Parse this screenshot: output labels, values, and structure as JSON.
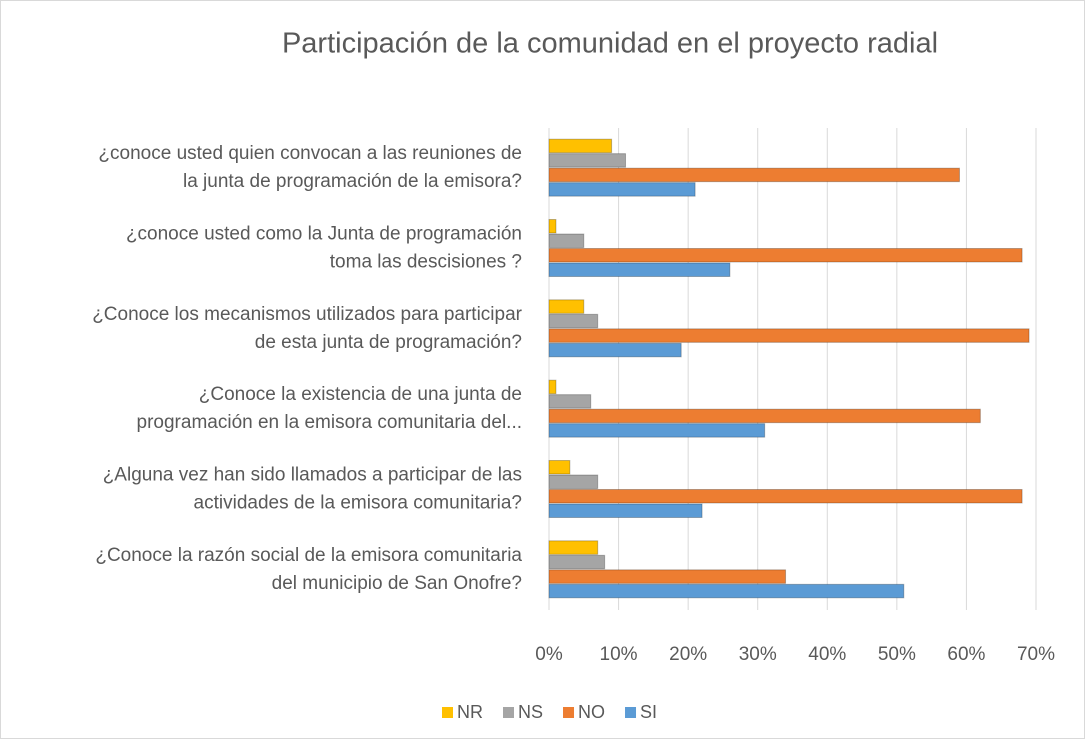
{
  "chart_data": {
    "type": "bar",
    "orientation": "horizontal",
    "title": "Participación de la comunidad en el proyecto radial",
    "categories": [
      [
        "¿conoce usted quien  convocan a las reuniones de",
        "la junta de programación de la emisora?"
      ],
      [
        "¿conoce usted como la Junta de programación",
        "toma las descisiones ?"
      ],
      [
        "¿Conoce los mecanismos utilizados para participar",
        "de esta junta de programación?"
      ],
      [
        "¿Conoce la existencia de una junta de",
        "programación en la emisora comunitaria del..."
      ],
      [
        "¿Alguna vez han sido llamados a participar de las",
        "actividades de la emisora comunitaria?"
      ],
      [
        "¿Conoce la razón social de la emisora comunitaria",
        "del municipio de San Onofre?"
      ]
    ],
    "series": [
      {
        "name": "NR",
        "color": "#ffc000",
        "values": [
          9,
          1,
          5,
          1,
          3,
          7
        ]
      },
      {
        "name": "NS",
        "color": "#a5a5a5",
        "values": [
          11,
          5,
          7,
          6,
          7,
          8
        ]
      },
      {
        "name": "NO",
        "color": "#ed7d31",
        "values": [
          59,
          68,
          69,
          62,
          68,
          34
        ]
      },
      {
        "name": "SI",
        "color": "#5b9bd5",
        "values": [
          21,
          26,
          19,
          31,
          22,
          51
        ]
      }
    ],
    "xlim": [
      0,
      70
    ],
    "xticks": [
      {
        "value": 0,
        "label": "0%"
      },
      {
        "value": 10,
        "label": "10%"
      },
      {
        "value": 20,
        "label": "20%"
      },
      {
        "value": 30,
        "label": "30%"
      },
      {
        "value": 40,
        "label": "40%"
      },
      {
        "value": 50,
        "label": "50%"
      },
      {
        "value": 60,
        "label": "60%"
      },
      {
        "value": 70,
        "label": "70%"
      }
    ],
    "grid": true,
    "legend": "bottom"
  }
}
